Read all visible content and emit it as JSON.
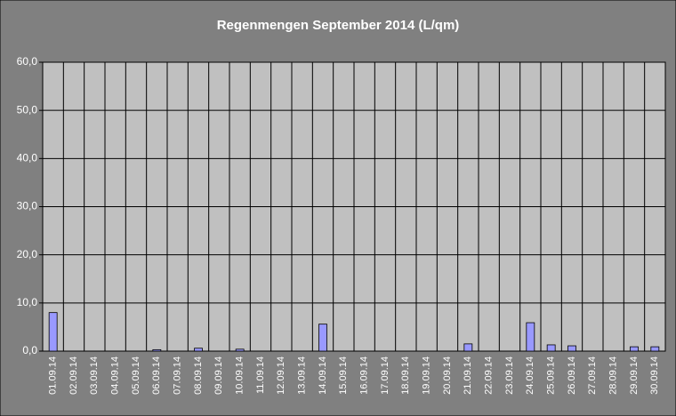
{
  "chart_data": {
    "type": "bar",
    "title": "Regenmengen September 2014 (L/qm)",
    "categories": [
      "01.09.14",
      "02.09.14",
      "03.09.14",
      "04.09.14",
      "05.09.14",
      "06.09.14",
      "07.09.14",
      "08.09.14",
      "09.09.14",
      "10.09.14",
      "11.09.14",
      "12.09.14",
      "13.09.14",
      "14.09.14",
      "15.09.14",
      "16.09.14",
      "17.09.14",
      "18.09.14",
      "19.09.14",
      "20.09.14",
      "21.09.14",
      "22.09.14",
      "23.09.14",
      "24.09.14",
      "25.09.14",
      "26.09.14",
      "27.09.14",
      "28.09.14",
      "29.09.14",
      "30.09.14"
    ],
    "values": [
      8.0,
      0,
      0,
      0,
      0,
      0.3,
      0,
      0.6,
      0,
      0.4,
      0,
      0,
      0,
      5.6,
      0,
      0,
      0,
      0,
      0,
      0,
      1.5,
      0,
      0,
      5.9,
      1.3,
      1.1,
      0,
      0,
      0.9,
      0.9
    ],
    "color": "#9999ff",
    "ylim": [
      0,
      60
    ],
    "yticks": [
      {
        "value": 0,
        "label": "0,0"
      },
      {
        "value": 10,
        "label": "10,0"
      },
      {
        "value": 20,
        "label": "20,0"
      },
      {
        "value": 30,
        "label": "30,0"
      },
      {
        "value": 40,
        "label": "40,0"
      },
      {
        "value": 50,
        "label": "50,0"
      },
      {
        "value": 60,
        "label": "60,0"
      }
    ],
    "grid": true
  }
}
